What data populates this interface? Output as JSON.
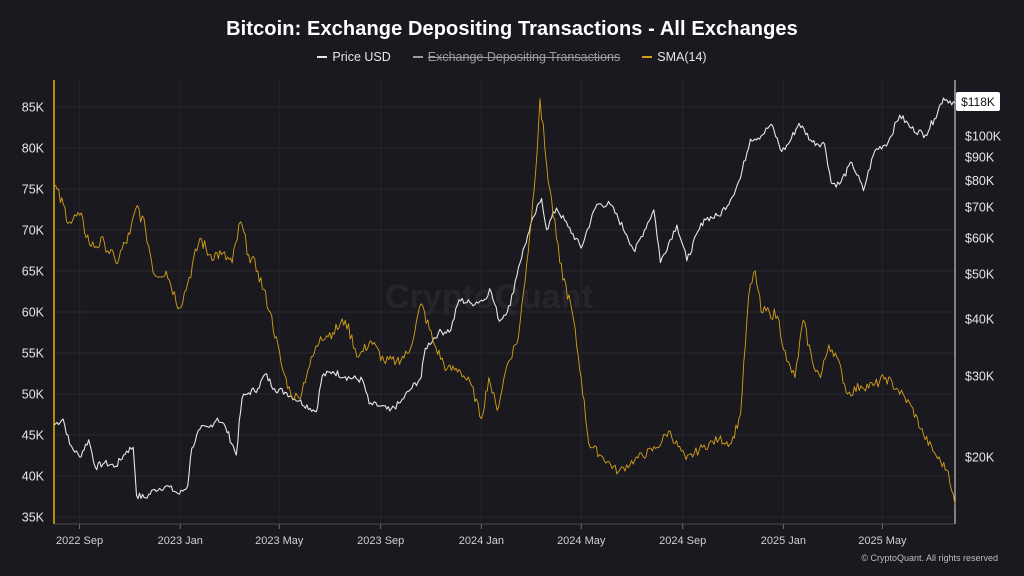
{
  "title": "Bitcoin: Exchange Depositing Transactions - All Exchanges",
  "legend": [
    {
      "label": "Price USD",
      "color": "#e6e6e6",
      "hidden": false
    },
    {
      "label": "Exchange Depositing Transactions",
      "color": "#9a9aa0",
      "hidden": true
    },
    {
      "label": "SMA(14)",
      "color": "#d4a017",
      "hidden": false
    }
  ],
  "watermark": "CryptoQuant",
  "copyright": "© CryptoQuant. All rights reserved",
  "price_badge": "$118K",
  "colors": {
    "background": "#1a191f",
    "price": "#e6e6e6",
    "sma": "#d4a017",
    "left_axis": "#e2b300"
  },
  "chart_data": {
    "type": "line",
    "title": "Bitcoin: Exchange Depositing Transactions - All Exchanges",
    "x_ticks": [
      "2022 Sep",
      "2023 Jan",
      "2023 May",
      "2023 Sep",
      "2024 Jan",
      "2024 May",
      "2024 Sep",
      "2025 Jan",
      "2025 May"
    ],
    "x_range": [
      "2022-08-01",
      "2025-07-28"
    ],
    "left_axis": {
      "series": "SMA(14)",
      "ticks": [
        "85K",
        "80K",
        "75K",
        "70K",
        "65K",
        "60K",
        "55K",
        "50K",
        "45K",
        "40K",
        "35K"
      ],
      "ylim": [
        35000,
        85000
      ]
    },
    "right_axis": {
      "series": "Price USD",
      "scale": "log",
      "ticks": [
        "$100K",
        "$90K",
        "$80K",
        "$70K",
        "$60K",
        "$50K",
        "$40K",
        "$30K",
        "$20K"
      ],
      "ylim": [
        16000,
        130000
      ]
    },
    "grid": true,
    "legend_position": "top-center",
    "series": [
      {
        "name": "Price USD",
        "axis": "right",
        "points": [
          [
            "2022-08-01",
            23500
          ],
          [
            "2022-08-12",
            24200
          ],
          [
            "2022-08-20",
            21300
          ],
          [
            "2022-09-01",
            20000
          ],
          [
            "2022-09-12",
            21800
          ],
          [
            "2022-09-20",
            19000
          ],
          [
            "2022-10-01",
            19400
          ],
          [
            "2022-10-15",
            19100
          ],
          [
            "2022-10-28",
            20600
          ],
          [
            "2022-11-05",
            21000
          ],
          [
            "2022-11-09",
            16500
          ],
          [
            "2022-11-20",
            16300
          ],
          [
            "2022-12-01",
            17000
          ],
          [
            "2022-12-15",
            17300
          ],
          [
            "2022-12-31",
            16600
          ],
          [
            "2023-01-10",
            17300
          ],
          [
            "2023-01-15",
            20900
          ],
          [
            "2023-01-25",
            23000
          ],
          [
            "2023-02-05",
            23200
          ],
          [
            "2023-02-15",
            24300
          ],
          [
            "2023-02-25",
            23200
          ],
          [
            "2023-03-10",
            20200
          ],
          [
            "2023-03-17",
            26900
          ],
          [
            "2023-03-25",
            27600
          ],
          [
            "2023-04-05",
            28200
          ],
          [
            "2023-04-14",
            30300
          ],
          [
            "2023-04-25",
            28200
          ],
          [
            "2023-05-10",
            27600
          ],
          [
            "2023-05-25",
            26500
          ],
          [
            "2023-06-15",
            25100
          ],
          [
            "2023-06-22",
            30000
          ],
          [
            "2023-07-05",
            30700
          ],
          [
            "2023-07-20",
            29900
          ],
          [
            "2023-08-10",
            29400
          ],
          [
            "2023-08-18",
            26100
          ],
          [
            "2023-09-01",
            25800
          ],
          [
            "2023-09-12",
            25200
          ],
          [
            "2023-09-25",
            26300
          ],
          [
            "2023-10-05",
            27800
          ],
          [
            "2023-10-20",
            29800
          ],
          [
            "2023-10-25",
            34500
          ],
          [
            "2023-11-10",
            37300
          ],
          [
            "2023-11-25",
            37800
          ],
          [
            "2023-12-05",
            44000
          ],
          [
            "2023-12-20",
            43200
          ],
          [
            "2024-01-05",
            44100
          ],
          [
            "2024-01-11",
            46500
          ],
          [
            "2024-01-23",
            39500
          ],
          [
            "2024-02-05",
            42800
          ],
          [
            "2024-02-15",
            51800
          ],
          [
            "2024-02-28",
            62000
          ],
          [
            "2024-03-05",
            67000
          ],
          [
            "2024-03-14",
            73100
          ],
          [
            "2024-03-20",
            62500
          ],
          [
            "2024-04-01",
            69700
          ],
          [
            "2024-04-15",
            63500
          ],
          [
            "2024-05-01",
            57000
          ],
          [
            "2024-05-20",
            71000
          ],
          [
            "2024-06-05",
            71000
          ],
          [
            "2024-06-25",
            61000
          ],
          [
            "2024-07-05",
            56000
          ],
          [
            "2024-07-28",
            69000
          ],
          [
            "2024-08-05",
            53000
          ],
          [
            "2024-08-25",
            64000
          ],
          [
            "2024-09-06",
            53500
          ],
          [
            "2024-09-27",
            66000
          ],
          [
            "2024-10-15",
            67000
          ],
          [
            "2024-10-29",
            72700
          ],
          [
            "2024-11-10",
            81000
          ],
          [
            "2024-11-22",
            98500
          ],
          [
            "2024-12-05",
            100000
          ],
          [
            "2024-12-17",
            106000
          ],
          [
            "2024-12-30",
            92500
          ],
          [
            "2025-01-07",
            96000
          ],
          [
            "2025-01-20",
            106500
          ],
          [
            "2025-02-05",
            97000
          ],
          [
            "2025-02-20",
            96000
          ],
          [
            "2025-02-28",
            79000
          ],
          [
            "2025-03-10",
            78500
          ],
          [
            "2025-03-25",
            87500
          ],
          [
            "2025-04-08",
            76000
          ],
          [
            "2025-04-22",
            93000
          ],
          [
            "2025-05-08",
            97000
          ],
          [
            "2025-05-22",
            111000
          ],
          [
            "2025-06-05",
            104000
          ],
          [
            "2025-06-22",
            100500
          ],
          [
            "2025-07-03",
            109000
          ],
          [
            "2025-07-14",
            121000
          ],
          [
            "2025-07-28",
            118000
          ]
        ]
      },
      {
        "name": "SMA(14)",
        "axis": "left",
        "points": [
          [
            "2022-08-01",
            75500
          ],
          [
            "2022-08-20",
            71000
          ],
          [
            "2022-09-01",
            71800
          ],
          [
            "2022-09-15",
            68000
          ],
          [
            "2022-10-01",
            68500
          ],
          [
            "2022-10-15",
            66000
          ],
          [
            "2022-11-01",
            69500
          ],
          [
            "2022-11-10",
            73000
          ],
          [
            "2022-11-20",
            70000
          ],
          [
            "2022-12-01",
            64500
          ],
          [
            "2022-12-15",
            65000
          ],
          [
            "2022-12-31",
            60500
          ],
          [
            "2023-01-10",
            63500
          ],
          [
            "2023-01-25",
            69000
          ],
          [
            "2023-02-05",
            67000
          ],
          [
            "2023-02-20",
            67000
          ],
          [
            "2023-03-05",
            66000
          ],
          [
            "2023-03-15",
            71000
          ],
          [
            "2023-03-25",
            67000
          ],
          [
            "2023-04-05",
            65000
          ],
          [
            "2023-04-20",
            60000
          ],
          [
            "2023-05-05",
            53000
          ],
          [
            "2023-05-15",
            50000
          ],
          [
            "2023-05-25",
            49500
          ],
          [
            "2023-06-05",
            53000
          ],
          [
            "2023-06-20",
            57000
          ],
          [
            "2023-07-05",
            57500
          ],
          [
            "2023-07-20",
            59000
          ],
          [
            "2023-08-05",
            54500
          ],
          [
            "2023-08-20",
            56500
          ],
          [
            "2023-09-05",
            54000
          ],
          [
            "2023-09-20",
            54000
          ],
          [
            "2023-10-05",
            55000
          ],
          [
            "2023-10-20",
            61000
          ],
          [
            "2023-11-05",
            56000
          ],
          [
            "2023-11-20",
            53000
          ],
          [
            "2023-12-05",
            53000
          ],
          [
            "2023-12-20",
            51000
          ],
          [
            "2024-01-01",
            47000
          ],
          [
            "2024-01-10",
            52000
          ],
          [
            "2024-01-20",
            48000
          ],
          [
            "2024-02-01",
            53500
          ],
          [
            "2024-02-15",
            57000
          ],
          [
            "2024-02-25",
            66000
          ],
          [
            "2024-03-05",
            75000
          ],
          [
            "2024-03-12",
            86000
          ],
          [
            "2024-03-20",
            78000
          ],
          [
            "2024-04-05",
            66000
          ],
          [
            "2024-04-20",
            60000
          ],
          [
            "2024-05-01",
            52000
          ],
          [
            "2024-05-10",
            44000
          ],
          [
            "2024-05-25",
            42500
          ],
          [
            "2024-06-15",
            40500
          ],
          [
            "2024-07-05",
            42000
          ],
          [
            "2024-08-01",
            43500
          ],
          [
            "2024-08-15",
            45500
          ],
          [
            "2024-09-05",
            42000
          ],
          [
            "2024-09-25",
            43500
          ],
          [
            "2024-10-15",
            44500
          ],
          [
            "2024-10-30",
            44000
          ],
          [
            "2024-11-10",
            47500
          ],
          [
            "2024-11-20",
            62000
          ],
          [
            "2024-11-28",
            65000
          ],
          [
            "2024-12-05",
            60000
          ],
          [
            "2024-12-15",
            60000
          ],
          [
            "2024-12-25",
            59500
          ],
          [
            "2025-01-05",
            54000
          ],
          [
            "2025-01-15",
            52000
          ],
          [
            "2025-01-25",
            59000
          ],
          [
            "2025-02-05",
            54000
          ],
          [
            "2025-02-15",
            52000
          ],
          [
            "2025-02-25",
            56000
          ],
          [
            "2025-03-05",
            55000
          ],
          [
            "2025-03-20",
            50000
          ],
          [
            "2025-04-05",
            51000
          ],
          [
            "2025-04-20",
            51000
          ],
          [
            "2025-05-05",
            52000
          ],
          [
            "2025-05-20",
            50500
          ],
          [
            "2025-06-05",
            48500
          ],
          [
            "2025-06-20",
            45000
          ],
          [
            "2025-07-05",
            42500
          ],
          [
            "2025-07-20",
            40500
          ],
          [
            "2025-07-28",
            36500
          ]
        ]
      },
      {
        "name": "Exchange Depositing Transactions",
        "axis": "left",
        "hidden": true,
        "points": []
      }
    ]
  }
}
